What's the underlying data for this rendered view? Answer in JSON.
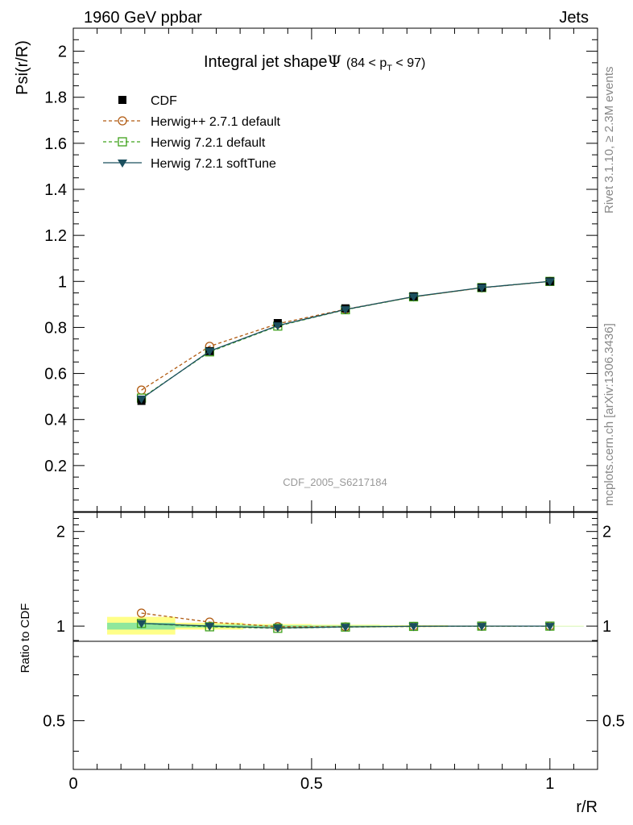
{
  "header": {
    "left": "1960 GeV ppbar",
    "right": "Jets"
  },
  "side_texts": {
    "rivet": "Rivet 3.1.10, ≥ 2.3M events",
    "mcplots": "mcplots.cern.ch [arXiv:1306.3436]"
  },
  "chart_data": [
    {
      "type": "line",
      "title": "Integral jet shape",
      "title_symbol": "Ψ",
      "title_range": "(84 < p",
      "title_range_sub": "T",
      "title_range_end": " < 97)",
      "ylabel": "Psi(r/R)",
      "xlabel": "r/R",
      "watermark": "CDF_2005_S6217184",
      "xlim": [
        0,
        1.1
      ],
      "ylim": [
        0,
        2.1
      ],
      "yticks": [
        0.2,
        0.4,
        0.6,
        0.8,
        1,
        1.2,
        1.4,
        1.6,
        1.8,
        2
      ],
      "yticklabels": [
        "0.2",
        "0.4",
        "0.6",
        "0.8",
        "1",
        "1.2",
        "1.4",
        "1.6",
        "1.8",
        "2"
      ],
      "x": [
        0.143,
        0.286,
        0.429,
        0.571,
        0.714,
        0.857,
        1.0
      ],
      "series": [
        {
          "name": "CDF",
          "marker": "filled-square",
          "color": "#000000",
          "values": [
            0.481,
            0.697,
            0.819,
            0.883,
            0.935,
            0.973,
            1.0
          ]
        },
        {
          "name": "Herwig++ 2.7.1 default",
          "marker": "open-circle",
          "line": "dashed",
          "color": "#b15b12",
          "values": [
            0.528,
            0.718,
            0.816,
            0.879,
            0.933,
            0.972,
            1.0
          ]
        },
        {
          "name": "Herwig 7.2.1 default",
          "marker": "open-square",
          "line": "dashed",
          "color": "#3fa21a",
          "values": [
            0.493,
            0.694,
            0.806,
            0.877,
            0.933,
            0.973,
            1.0
          ]
        },
        {
          "name": "Herwig 7.2.1 softTune",
          "marker": "filled-triangle-down",
          "line": "solid",
          "color": "#1b4f5e",
          "values": [
            0.49,
            0.697,
            0.808,
            0.878,
            0.934,
            0.973,
            1.0
          ]
        }
      ]
    },
    {
      "type": "line",
      "ylabel": "Ratio to CDF",
      "xlabel": "r/R",
      "log_y": true,
      "xlim": [
        0,
        1.1
      ],
      "ylim": [
        0.35,
        2.3
      ],
      "xticks": [
        0,
        0.5,
        1
      ],
      "xticklabels": [
        "0",
        "0.5",
        "1"
      ],
      "yticks": [
        0.5,
        1,
        2
      ],
      "yticklabels": [
        "0.5",
        "1",
        "2"
      ],
      "x": [
        0.143,
        0.286,
        0.429,
        0.571,
        0.714,
        0.857,
        1.0
      ],
      "bands": {
        "bin_edges": [
          [
            0.071,
            0.214
          ],
          [
            0.214,
            0.357
          ],
          [
            0.357,
            0.5
          ],
          [
            0.5,
            0.643
          ],
          [
            0.643,
            0.786
          ],
          [
            0.786,
            0.929
          ],
          [
            0.929,
            1.071
          ]
        ],
        "inner": [
          [
            0.975,
            1.025
          ],
          [
            0.99,
            1.01
          ],
          [
            0.994,
            1.006
          ],
          [
            0.996,
            1.004
          ],
          [
            0.997,
            1.003
          ],
          [
            0.998,
            1.002
          ],
          [
            0.999,
            1.001
          ]
        ],
        "outer": [
          [
            0.94,
            1.07
          ],
          [
            0.975,
            1.025
          ],
          [
            0.985,
            1.015
          ],
          [
            0.99,
            1.01
          ],
          [
            0.993,
            1.007
          ],
          [
            0.996,
            1.004
          ],
          [
            0.998,
            1.002
          ]
        ]
      },
      "series": [
        {
          "name": "Herwig++ 2.7.1 default",
          "color": "#b15b12",
          "values": [
            1.1,
            1.03,
            0.996,
            0.995,
            0.998,
            0.999,
            1.0
          ]
        },
        {
          "name": "Herwig 7.2.1 default",
          "color": "#3fa21a",
          "values": [
            1.02,
            0.995,
            0.984,
            0.993,
            0.998,
            1.0,
            1.0
          ]
        },
        {
          "name": "Herwig 7.2.1 softTune",
          "color": "#1b4f5e",
          "values": [
            1.02,
            1.0,
            0.987,
            0.994,
            0.999,
            1.0,
            1.0
          ]
        }
      ]
    }
  ]
}
